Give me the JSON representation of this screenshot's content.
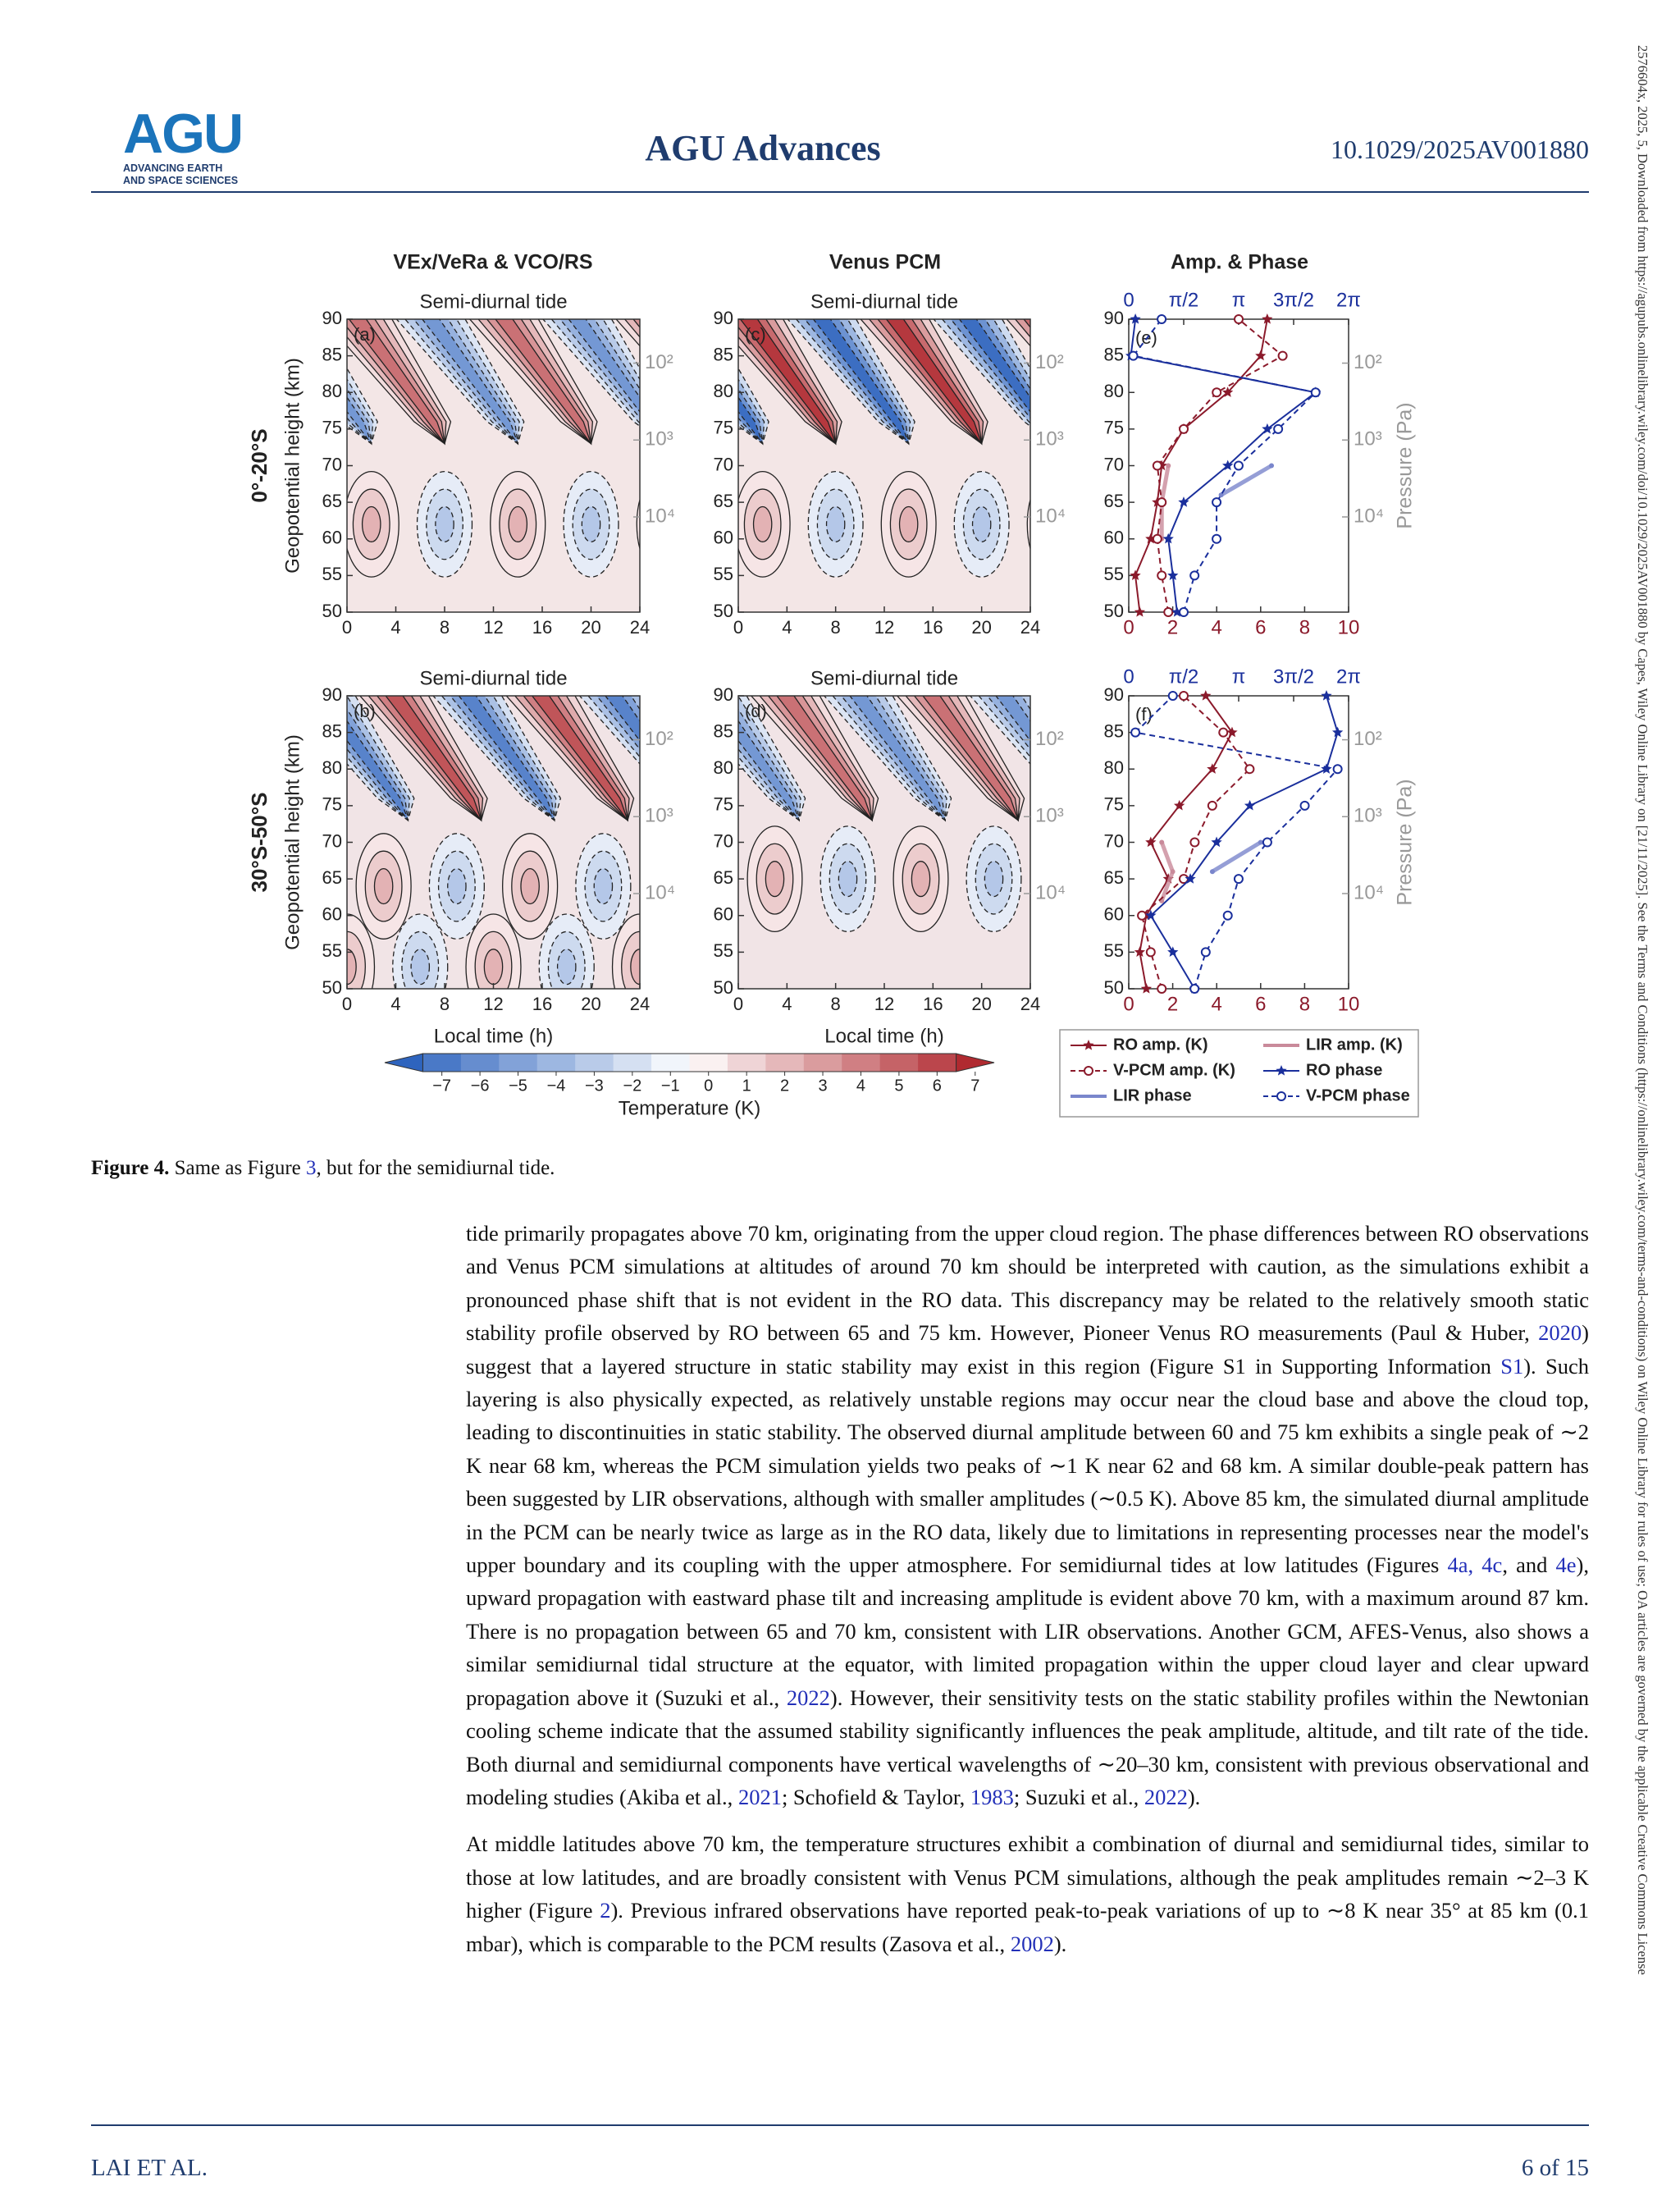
{
  "header": {
    "logo": "AGU",
    "logo_sub": [
      "ADVANCING EARTH",
      "AND SPACE SCIENCES"
    ],
    "journal": "AGU Advances",
    "doi": "10.1029/2025AV001880"
  },
  "side_note": "2576604x, 2025, 5, Downloaded from https://agupubs.onlinelibrary.wiley.com/doi/10.1029/2025AV001880 by Capes, Wiley Online Library on [21/11/2025]. See the Terms and Conditions (https://onlinelibrary.wiley.com/terms-and-conditions) on Wiley Online Library for rules of use; OA articles are governed by the applicable Creative Commons License",
  "figure": {
    "column_titles": [
      "VEx/VeRa & VCO/RS",
      "Venus PCM",
      "Amp. & Phase"
    ],
    "subtitle": "Semi-diurnal tide",
    "y_label": "Geopotential height (km)",
    "x_label": "Local time (h)",
    "pressure_label": "Pressure (Pa)",
    "height_lim": [
      50,
      90
    ],
    "height_ticks": [
      50,
      55,
      60,
      65,
      70,
      75,
      80,
      85,
      90
    ],
    "time_lim": [
      0,
      24
    ],
    "time_ticks": [
      0,
      4,
      8,
      12,
      16,
      20,
      24
    ],
    "amp_lim": [
      0,
      10
    ],
    "amp_ticks": [
      0,
      2,
      4,
      6,
      8,
      10
    ],
    "phase_lim": [
      0,
      6.2832
    ],
    "phase_ticks": [
      0,
      {
        "value": 1.5708,
        "label": "π/2"
      },
      {
        "value": 3.1416,
        "label": "π"
      },
      {
        "value": 4.7124,
        "label": "3π/2"
      },
      {
        "value": 6.2832,
        "label": "2π"
      }
    ],
    "pressure_ticks": [
      {
        "value": 100,
        "label": "10²"
      },
      {
        "value": 1000,
        "label": "10³"
      },
      {
        "value": 10000,
        "label": "10⁴"
      }
    ],
    "colorbar": {
      "label": "Temperature (K)",
      "lim": [
        -8,
        8
      ],
      "ticks": [
        {
          "value": -7,
          "label": "−7"
        },
        {
          "value": -6,
          "label": "−6"
        },
        {
          "value": -5,
          "label": "−5"
        },
        {
          "value": -4,
          "label": "−4"
        },
        {
          "value": -3,
          "label": "−3"
        },
        {
          "value": -2,
          "label": "−2"
        },
        {
          "value": -1,
          "label": "−1"
        },
        0,
        1,
        2,
        3,
        4,
        5,
        6,
        7
      ]
    },
    "series": [
      {
        "name": "RO amp. (K)",
        "color": "#8b1a2b",
        "marker": "star",
        "dashed": false,
        "axis": "amp"
      },
      {
        "name": "LIR amp. (K)",
        "color": "#c98a9a",
        "marker": "none",
        "dashed": false,
        "axis": "amp"
      },
      {
        "name": "V-PCM amp. (K)",
        "color": "#8b1a2b",
        "marker": "circle",
        "dashed": true,
        "axis": "amp"
      },
      {
        "name": "RO phase",
        "color": "#1a2f9c",
        "marker": "star",
        "dashed": false,
        "axis": "phase"
      },
      {
        "name": "LIR phase",
        "color": "#7a86cc",
        "marker": "none",
        "dashed": false,
        "axis": "phase"
      },
      {
        "name": "V-PCM phase",
        "color": "#1a2f9c",
        "marker": "circle",
        "dashed": true,
        "axis": "phase"
      }
    ],
    "rows": [
      {
        "row_label": "0°-20°S",
        "panel_labels": [
          "(a)",
          "(c)",
          "(e)"
        ],
        "profiles": [
          {
            "heights": [
              50,
              55,
              60,
              65,
              70,
              75,
              80,
              85,
              90
            ],
            "values": [
              0.5,
              0.3,
              1.0,
              1.3,
              1.5,
              2.5,
              4.5,
              6.0,
              6.3
            ]
          },
          {
            "heights": [
              60,
              65,
              70
            ],
            "values": [
              1.5,
              1.5,
              1.8
            ]
          },
          {
            "heights": [
              50,
              55,
              60,
              65,
              70,
              75,
              80,
              85,
              90
            ],
            "values": [
              1.8,
              1.5,
              1.3,
              1.5,
              1.3,
              2.5,
              4.0,
              7.0,
              5.0
            ]
          },
          {
            "heights": [
              50,
              55,
              60,
              65,
              70,
              75,
              80,
              85,
              90
            ],
            "values": [
              1.38,
              1.26,
              1.13,
              1.57,
              2.83,
              3.96,
              5.34,
              0.06,
              0.19
            ]
          },
          {
            "heights": [
              66,
              70
            ],
            "values": [
              2.64,
              4.08
            ]
          },
          {
            "heights": [
              50,
              55,
              60,
              65,
              70,
              75,
              80,
              85,
              90
            ],
            "values": [
              1.57,
              1.88,
              2.51,
              2.51,
              3.14,
              4.27,
              5.34,
              0.13,
              0.94
            ]
          }
        ]
      },
      {
        "row_label": "30°S-50°S",
        "panel_labels": [
          "(b)",
          "(d)",
          "(f)"
        ],
        "profiles": [
          {
            "heights": [
              50,
              55,
              60,
              65,
              70,
              75,
              80,
              85,
              90
            ],
            "values": [
              0.8,
              0.5,
              0.8,
              1.8,
              1.0,
              2.3,
              3.8,
              4.7,
              3.5
            ]
          },
          {
            "heights": [
              62,
              66,
              70
            ],
            "values": [
              1.5,
              2.0,
              1.5
            ]
          },
          {
            "heights": [
              50,
              55,
              60,
              65,
              70,
              75,
              80,
              85,
              90
            ],
            "values": [
              1.5,
              1.0,
              0.6,
              2.5,
              3.0,
              3.8,
              5.5,
              4.3,
              2.5
            ]
          },
          {
            "heights": [
              50,
              55,
              60,
              65,
              70,
              75,
              80,
              85,
              90
            ],
            "values": [
              1.88,
              1.26,
              0.63,
              1.76,
              2.51,
              3.46,
              5.65,
              5.97,
              5.65
            ]
          },
          {
            "heights": [
              66,
              70
            ],
            "values": [
              2.39,
              3.77
            ]
          },
          {
            "heights": [
              50,
              55,
              60,
              65,
              70,
              75,
              80,
              85,
              90
            ],
            "values": [
              1.88,
              2.2,
              2.83,
              3.14,
              3.96,
              5.03,
              5.97,
              0.19,
              1.26
            ]
          }
        ]
      }
    ]
  },
  "caption": {
    "label": "Figure 4.",
    "parts": [
      "Same as Figure ",
      "3",
      ", but for the semidiurnal tide."
    ]
  },
  "body": [
    [
      "tide primarily propagates above 70 km, originating from the upper cloud region. The phase differences between RO observations and Venus PCM simulations at altitudes of around 70 km should be interpreted with caution, as the simulations exhibit a pronounced phase shift that is not evident in the RO data. This discrepancy may be related to the relatively smooth static stability profile observed by RO between 65 and 75 km. However, Pioneer Venus RO measurements (Paul & Huber, ",
      "2020",
      ") suggest that a layered structure in static stability may exist in this region (Figure S1 in Supporting Information ",
      "S1",
      "). Such layering is also physically expected, as relatively unstable regions may occur near the cloud base and above the cloud top, leading to discontinuities in static stability. The observed diurnal amplitude between 60 and 75 km exhibits a single peak of ∼2 K near 68 km, whereas the PCM simulation yields two peaks of ∼1 K near 62 and 68 km. A similar double-peak pattern has been suggested by LIR observations, although with smaller amplitudes (∼0.5 K). Above 85 km, the simulated diurnal amplitude in the PCM can be nearly twice as large as in the RO data, likely due to limitations in representing processes near the model's upper boundary and its coupling with the upper atmosphere. For semidiurnal tides at low latitudes (Figures ",
      "4a, 4c",
      ", and ",
      "4e",
      "), upward propagation with eastward phase tilt and increasing amplitude is evident above 70 km, with a maximum around 87 km. There is no propagation between 65 and 70 km, consistent with LIR observations. Another GCM, AFES-Venus, also shows a similar semidiurnal tidal structure at the equator, with limited propagation within the upper cloud layer and clear upward propagation above it (Suzuki et al., ",
      "2022",
      "). However, their sensitivity tests on the static stability profiles within the Newtonian cooling scheme indicate that the assumed stability significantly influences the peak amplitude, altitude, and tilt rate of the tide. Both diurnal and semidiurnal components have vertical wavelengths of ∼20–30 km, consistent with previous observational and modeling studies (Akiba et al., ",
      "2021",
      "; Schofield & Taylor, ",
      "1983",
      "; Suzuki et al., ",
      "2022",
      ")."
    ],
    [
      "At middle latitudes above 70 km, the temperature structures exhibit a combination of diurnal and semidiurnal tides, similar to those at low latitudes, and are broadly consistent with Venus PCM simulations, although the peak amplitudes remain ∼2–3 K higher (Figure ",
      "2",
      "). Previous infrared observations have reported peak-to-peak variations of up to ∼8 K near 35° at 85 km (0.1 mbar), which is comparable to the PCM results (Zasova et al., ",
      "2002",
      ")."
    ]
  ],
  "footer": {
    "authors": "LAI ET AL.",
    "page": "6 of 15"
  }
}
